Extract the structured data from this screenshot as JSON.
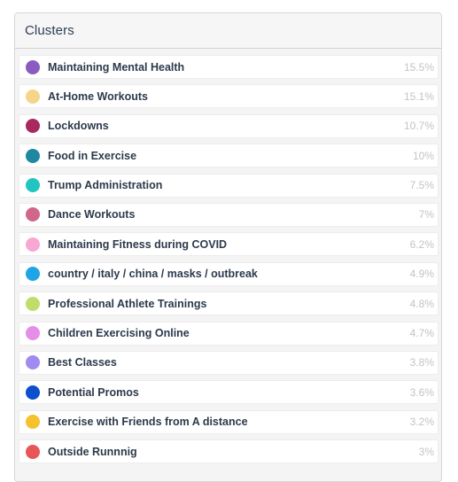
{
  "panel": {
    "title": "Clusters"
  },
  "clusters": [
    {
      "label": "Maintaining Mental Health",
      "percent": "15.5%",
      "color": "#8a5cc0"
    },
    {
      "label": "At-Home Workouts",
      "percent": "15.1%",
      "color": "#f6d58a"
    },
    {
      "label": "Lockdowns",
      "percent": "10.7%",
      "color": "#a8285f"
    },
    {
      "label": "Food in Exercise",
      "percent": "10%",
      "color": "#1e88a2"
    },
    {
      "label": "Trump Administration",
      "percent": "7.5%",
      "color": "#21c4c1"
    },
    {
      "label": "Dance Workouts",
      "percent": "7%",
      "color": "#d0678b"
    },
    {
      "label": "Maintaining Fitness during COVID",
      "percent": "6.2%",
      "color": "#f7a7d3"
    },
    {
      "label": "country / italy / china / masks / outbreak",
      "percent": "4.9%",
      "color": "#1fa4e6"
    },
    {
      "label": "Professional Athlete Trainings",
      "percent": "4.8%",
      "color": "#c1dc6a"
    },
    {
      "label": "Children Exercising Online",
      "percent": "4.7%",
      "color": "#e48ee8"
    },
    {
      "label": "Best Classes",
      "percent": "3.8%",
      "color": "#a08cf0"
    },
    {
      "label": "Potential Promos",
      "percent": "3.6%",
      "color": "#0d4fcc"
    },
    {
      "label": "Exercise with Friends from A distance",
      "percent": "3.2%",
      "color": "#f5c22e"
    },
    {
      "label": "Outside Runnnig",
      "percent": "3%",
      "color": "#e85657"
    }
  ]
}
